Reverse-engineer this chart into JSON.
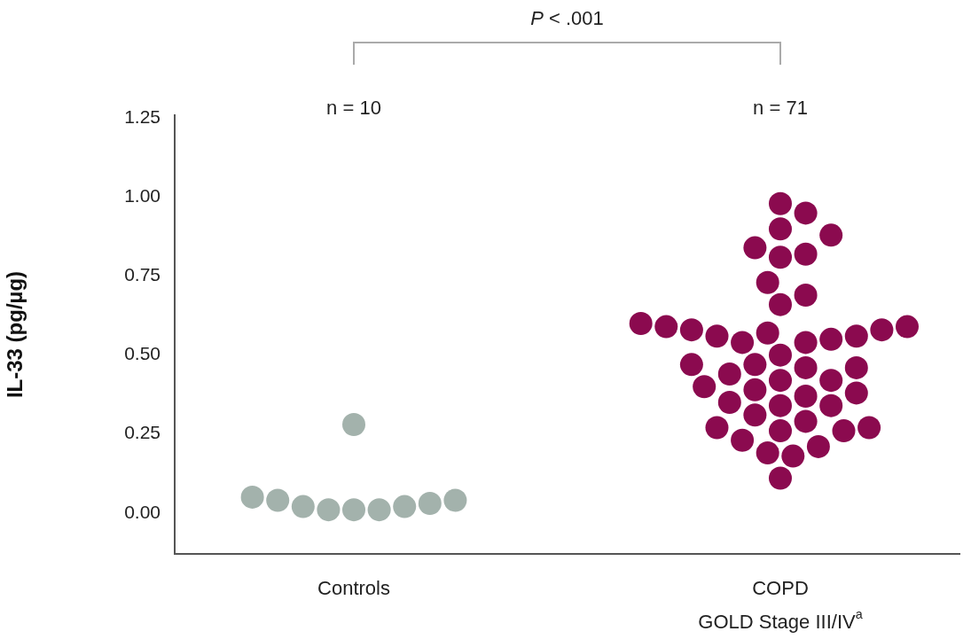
{
  "chart_data": {
    "type": "scatter",
    "ylabel": "IL-33 (pg/µg)",
    "categories": [
      "Controls",
      "COPD\nGOLD Stage III/IV$^{a}$"
    ],
    "ylim": [
      -0.13,
      1.26
    ],
    "yticks": [
      {
        "value": 0,
        "label": "0.00"
      },
      0.25,
      {
        "value": 0.5,
        "label": "0.50"
      },
      0.75,
      {
        "value": 1,
        "label": "1.00"
      },
      1.25
    ],
    "grid": false,
    "legend": false,
    "marker": "circle",
    "annotations": [
      "P < .001",
      "n = 10",
      "n = 71"
    ],
    "series": [
      {
        "color": "#a3b2ac",
        "x": [
          "Controls",
          "Controls",
          "Controls",
          "Controls",
          "Controls",
          "Controls",
          "Controls",
          "Controls",
          "Controls",
          "Controls"
        ],
        "values": [
          0.05,
          0.04,
          0.02,
          0.01,
          0.01,
          0.01,
          0.02,
          0.03,
          0.04,
          0.28
        ]
      },
      {
        "color": "#8b0a4f",
        "x": [
          "COPD\nGOLD Stage III/IV$^{a}$",
          "COPD\nGOLD Stage III/IV$^{a}$",
          "COPD\nGOLD Stage III/IV$^{a}$",
          "COPD\nGOLD Stage III/IV$^{a}$",
          "COPD\nGOLD Stage III/IV$^{a}$",
          "COPD\nGOLD Stage III/IV$^{a}$",
          "COPD\nGOLD Stage III/IV$^{a}$",
          "COPD\nGOLD Stage III/IV$^{a}$",
          "COPD\nGOLD Stage III/IV$^{a}$",
          "COPD\nGOLD Stage III/IV$^{a}$",
          "COPD\nGOLD Stage III/IV$^{a}$",
          "COPD\nGOLD Stage III/IV$^{a}$",
          "COPD\nGOLD Stage III/IV$^{a}$",
          "COPD\nGOLD Stage III/IV$^{a}$",
          "COPD\nGOLD Stage III/IV$^{a}$",
          "COPD\nGOLD Stage III/IV$^{a}$",
          "COPD\nGOLD Stage III/IV$^{a}$",
          "COPD\nGOLD Stage III/IV$^{a}$",
          "COPD\nGOLD Stage III/IV$^{a}$",
          "COPD\nGOLD Stage III/IV$^{a}$",
          "COPD\nGOLD Stage III/IV$^{a}$",
          "COPD\nGOLD Stage III/IV$^{a}$",
          "COPD\nGOLD Stage III/IV$^{a}$",
          "COPD\nGOLD Stage III/IV$^{a}$",
          "COPD\nGOLD Stage III/IV$^{a}$",
          "COPD\nGOLD Stage III/IV$^{a}$",
          "COPD\nGOLD Stage III/IV$^{a}$",
          "COPD\nGOLD Stage III/IV$^{a}$",
          "COPD\nGOLD Stage III/IV$^{a}$",
          "COPD\nGOLD Stage III/IV$^{a}$",
          "COPD\nGOLD Stage III/IV$^{a}$",
          "COPD\nGOLD Stage III/IV$^{a}$",
          "COPD\nGOLD Stage III/IV$^{a}$",
          "COPD\nGOLD Stage III/IV$^{a}$",
          "COPD\nGOLD Stage III/IV$^{a}$",
          "COPD\nGOLD Stage III/IV$^{a}$",
          "COPD\nGOLD Stage III/IV$^{a}$",
          "COPD\nGOLD Stage III/IV$^{a}$",
          "COPD\nGOLD Stage III/IV$^{a}$",
          "COPD\nGOLD Stage III/IV$^{a}$",
          "COPD\nGOLD Stage III/IV$^{a}$",
          "COPD\nGOLD Stage III/IV$^{a}$",
          "COPD\nGOLD Stage III/IV$^{a}$",
          "COPD\nGOLD Stage III/IV$^{a}$",
          "COPD\nGOLD Stage III/IV$^{a}$",
          "COPD\nGOLD Stage III/IV$^{a}$",
          "COPD\nGOLD Stage III/IV$^{a}$"
        ],
        "values": [
          0.98,
          0.95,
          0.88,
          0.9,
          0.82,
          0.84,
          0.81,
          0.73,
          0.69,
          0.66,
          0.6,
          0.59,
          0.58,
          0.56,
          0.56,
          0.57,
          0.58,
          0.59,
          0.54,
          0.54,
          0.55,
          0.46,
          0.5,
          0.47,
          0.47,
          0.46,
          0.44,
          0.42,
          0.39,
          0.38,
          0.4,
          0.42,
          0.37,
          0.35,
          0.34,
          0.34,
          0.27,
          0.26,
          0.29,
          0.23,
          0.31,
          0.26,
          0.27,
          0.18,
          0.21,
          0.19,
          0.11
        ]
      }
    ]
  }
}
